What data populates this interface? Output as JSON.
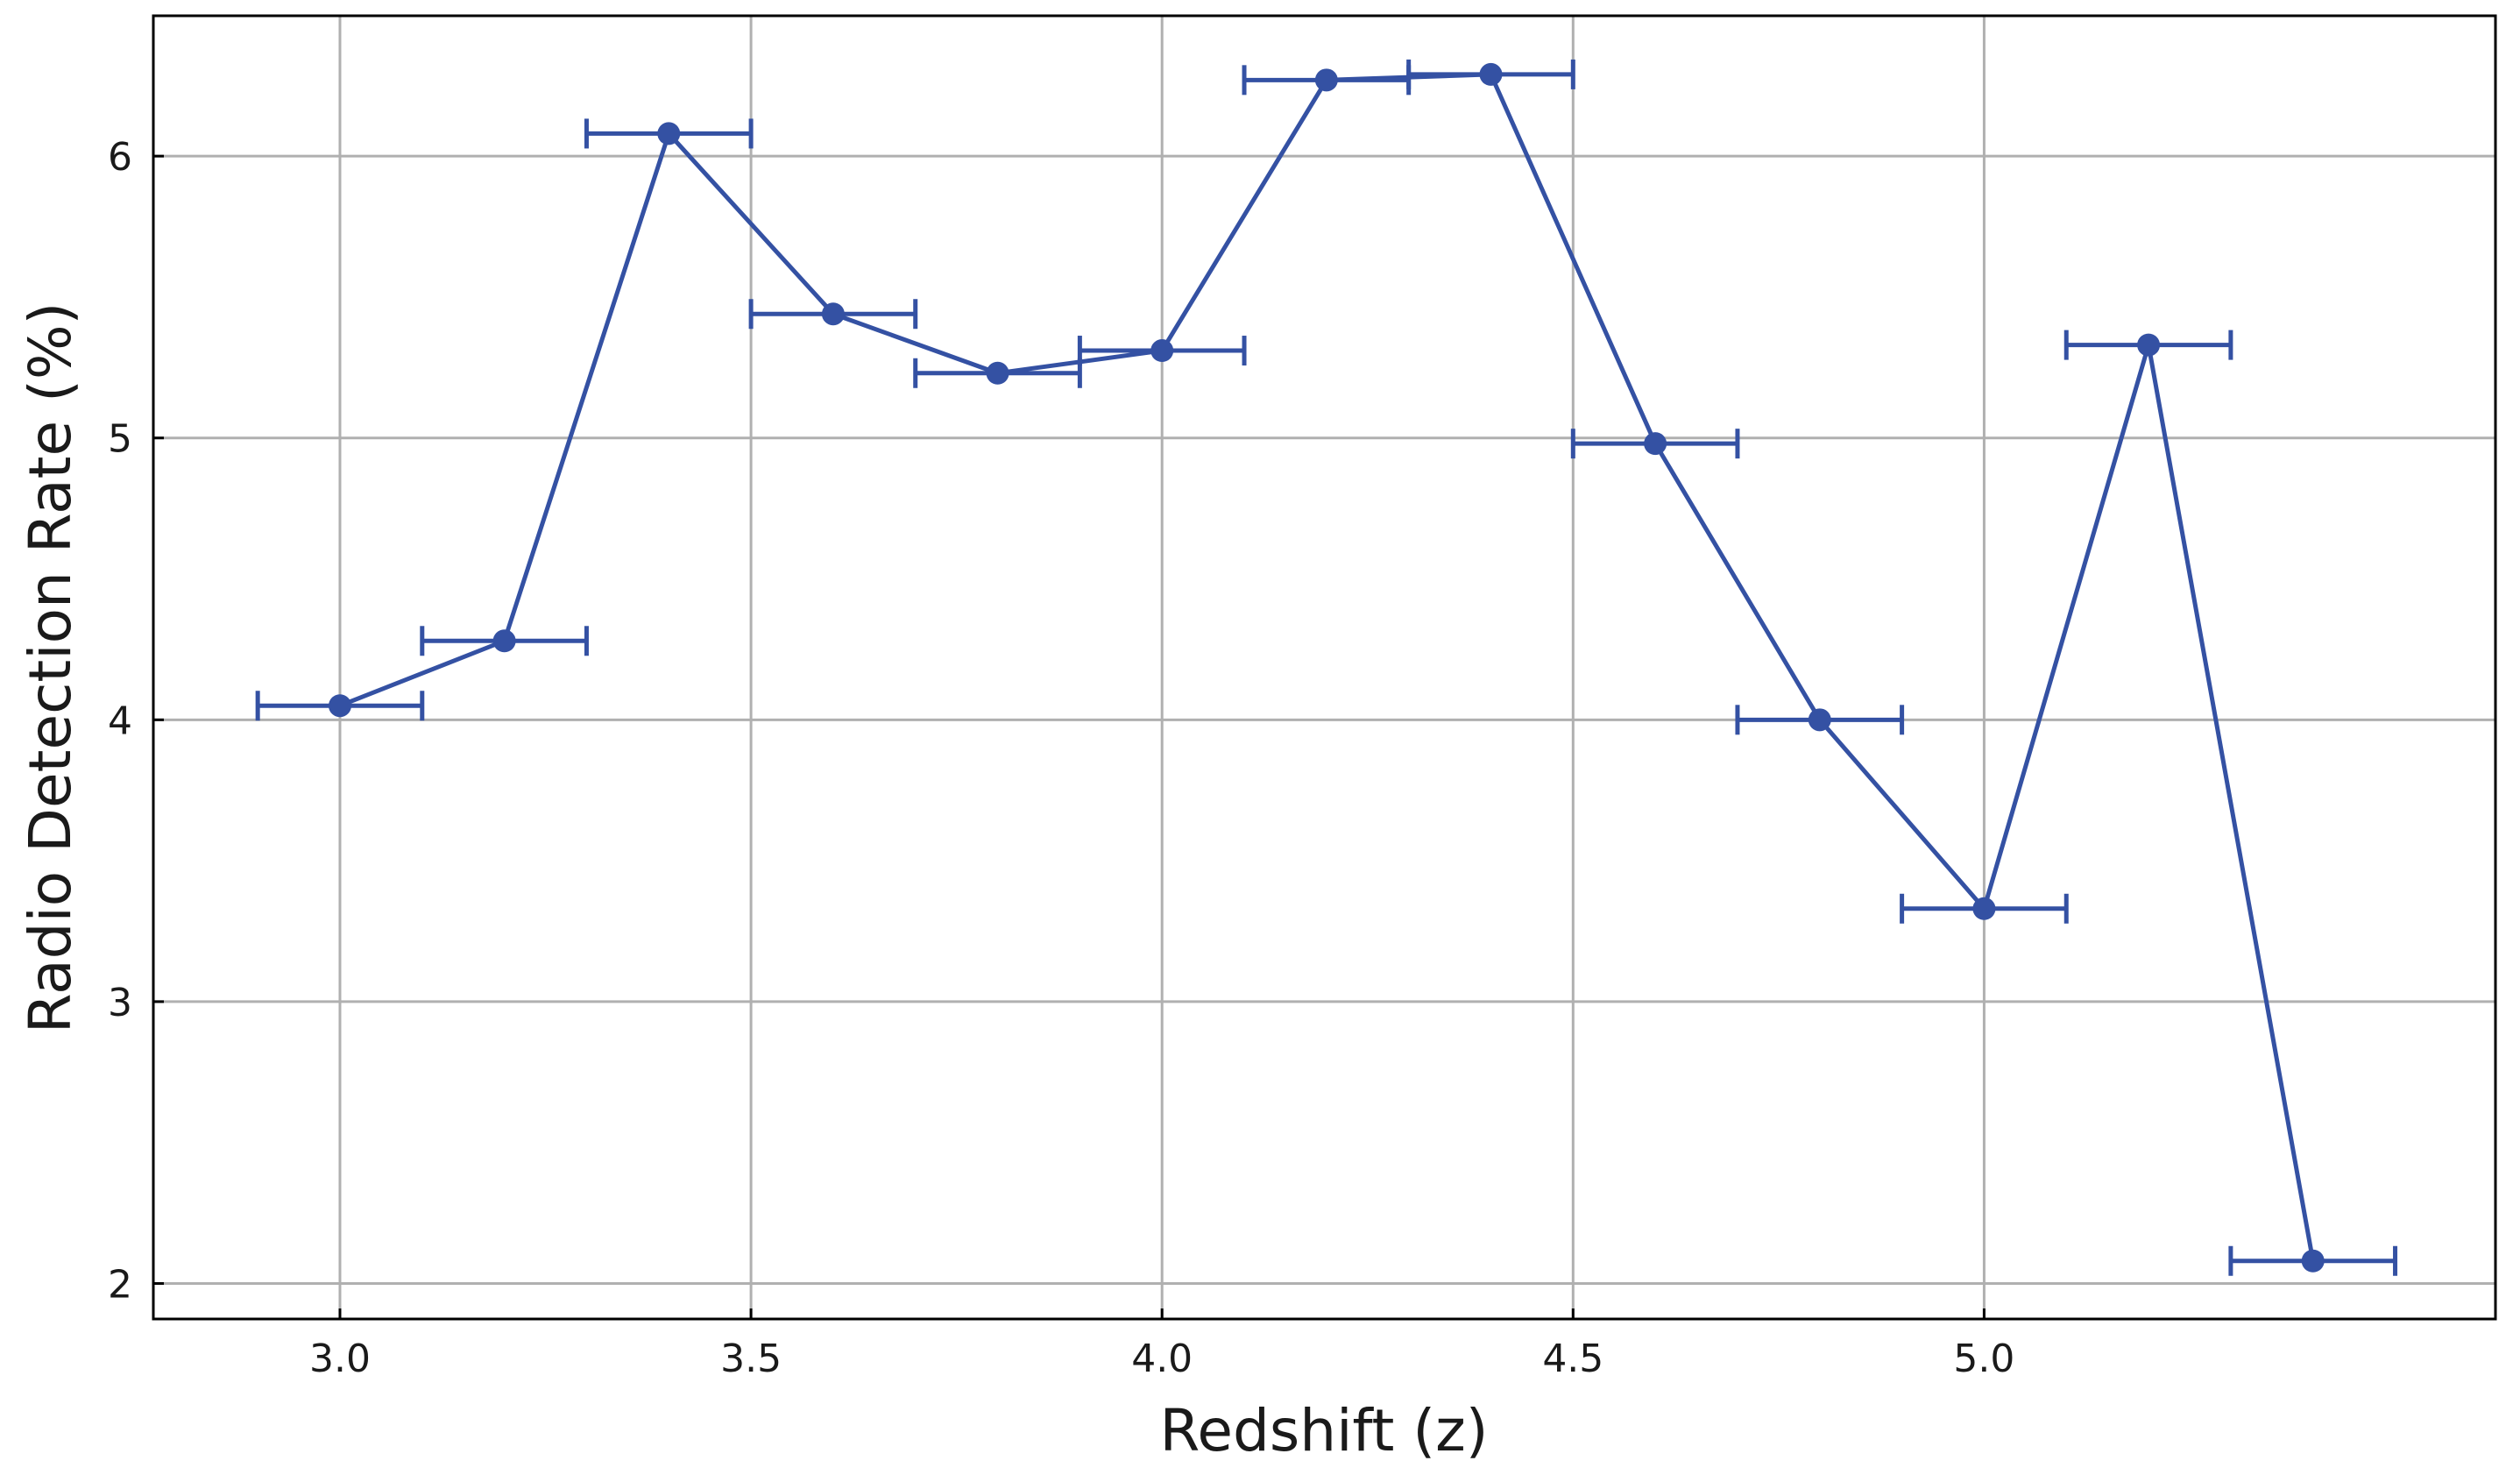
{
  "chart_data": {
    "type": "line",
    "x_label": "Redshift (z)",
    "y_label": "Radio Detection Rate (%)",
    "x": [
      3.0,
      3.2,
      3.4,
      3.6,
      3.8,
      4.0,
      4.2,
      4.4,
      4.6,
      4.8,
      5.0,
      5.2,
      5.4
    ],
    "series": [
      {
        "color": "#3451a3",
        "values": [
          4.05,
          4.28,
          6.08,
          5.44,
          5.23,
          5.31,
          6.27,
          6.29,
          4.98,
          4.0,
          3.33,
          5.33,
          2.08
        ],
        "xerr": [
          0.1,
          0.1,
          0.1,
          0.1,
          0.1,
          0.1,
          0.1,
          0.1,
          0.1,
          0.1,
          0.1,
          0.1,
          0.1
        ]
      }
    ],
    "xlim": [
      2.773,
      5.622
    ],
    "ylim": [
      1.874,
      6.498
    ],
    "xticks": [
      {
        "value": 3.0,
        "label": "3.0"
      },
      {
        "value": 3.5,
        "label": "3.5"
      },
      {
        "value": 4.0,
        "label": "4.0"
      },
      {
        "value": 4.5,
        "label": "4.5"
      },
      {
        "value": 5.0,
        "label": "5.0"
      }
    ],
    "yticks": [
      2,
      3,
      4,
      5,
      6
    ],
    "grid": true
  }
}
